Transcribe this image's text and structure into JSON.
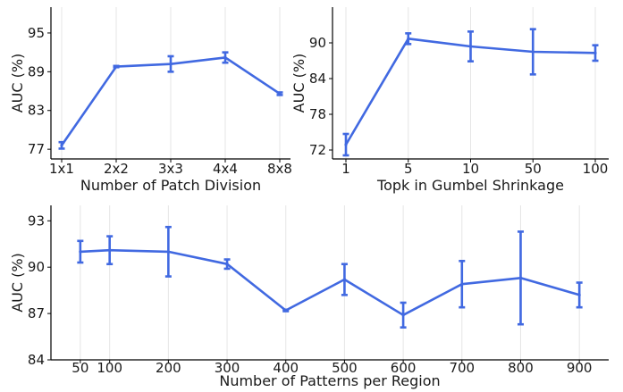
{
  "chart_data": [
    {
      "type": "line",
      "x_tick_labels": [
        "1x1",
        "2x2",
        "3x3",
        "4x4",
        "8x8"
      ],
      "xlabel": "Number of Patch Division",
      "ylabel": "AUC (%)",
      "ylim": [
        75.5,
        99
      ],
      "y_ticks": [
        77,
        83,
        89,
        95
      ],
      "grid": "vertical",
      "color": "#4169e1",
      "series": [
        {
          "values": [
            77.6,
            89.8,
            90.2,
            91.2,
            85.6
          ],
          "errors": [
            0.5,
            0.1,
            1.2,
            0.8,
            0.2
          ]
        }
      ]
    },
    {
      "type": "line",
      "x_tick_labels": [
        "1",
        "5",
        "10",
        "50",
        "100"
      ],
      "xlabel": "Topk in Gumbel Shrinkage",
      "ylabel": "AUC (%)",
      "ylim": [
        70.5,
        96
      ],
      "y_ticks": [
        72,
        78,
        84,
        90
      ],
      "grid": "vertical",
      "color": "#4169e1",
      "series": [
        {
          "values": [
            72.9,
            90.7,
            89.4,
            88.5,
            88.3
          ],
          "errors": [
            1.8,
            0.9,
            2.5,
            3.8,
            1.3
          ]
        }
      ]
    },
    {
      "type": "line",
      "x": [
        50,
        100,
        200,
        300,
        400,
        500,
        600,
        700,
        800,
        900
      ],
      "x_tick_labels": [
        "50",
        "100",
        "200",
        "300",
        "400",
        "500",
        "600",
        "700",
        "800",
        "900"
      ],
      "xlabel": "Number of Patterns per Region",
      "ylabel": "AUC (%)",
      "xlim": [
        0,
        950
      ],
      "ylim": [
        84,
        94
      ],
      "y_ticks": [
        84,
        87,
        90,
        93
      ],
      "grid": "vertical",
      "color": "#4169e1",
      "series": [
        {
          "values": [
            91.0,
            91.1,
            91.0,
            90.2,
            87.2,
            89.2,
            86.9,
            88.9,
            89.3,
            88.2
          ],
          "errors": [
            0.7,
            0.9,
            1.6,
            0.3,
            0.05,
            1.0,
            0.8,
            1.5,
            3.0,
            0.8
          ]
        }
      ]
    }
  ]
}
